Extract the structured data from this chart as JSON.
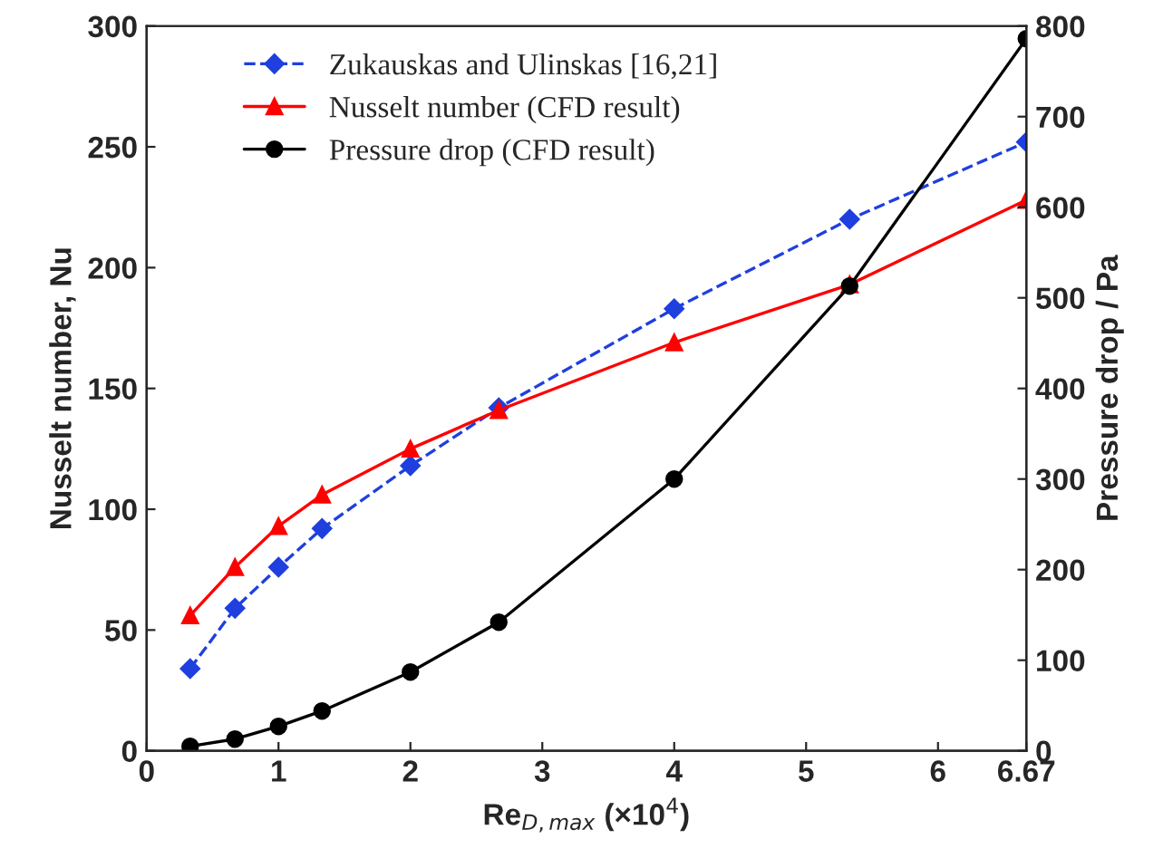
{
  "chart_data": {
    "type": "line",
    "xlabel": "Re$_{D,max}$ (×10$^{4}$)",
    "ylabel": "Nusselt number, Nu",
    "y2label": "Pressure drop / Pa",
    "x": [
      0.33,
      0.67,
      1,
      1.33,
      2,
      2.67,
      4,
      5.33,
      6.67
    ],
    "series": [
      {
        "name": "Zukauskas and Ulinskas [16,21]",
        "color": "#1f3fdf",
        "marker": "diamond",
        "line_style": "dashed",
        "values": [
          34,
          59,
          76,
          92,
          118,
          142,
          183,
          220,
          252
        ]
      },
      {
        "name": "Nusselt number (CFD result)",
        "color": "#ff0000",
        "marker": "triangle",
        "line_style": "solid",
        "values": [
          56,
          76,
          93,
          106,
          125,
          141,
          169,
          193,
          228
        ]
      },
      {
        "name": "Pressure drop (CFD result)",
        "color": "#000000",
        "marker": "circle",
        "line_style": "solid",
        "axis": "y2",
        "values": [
          5,
          13,
          27,
          44,
          87,
          142,
          300,
          513,
          786
        ]
      }
    ],
    "xlim": [
      0,
      6.67
    ],
    "xticks": [
      0,
      1,
      2,
      3,
      4,
      5,
      6,
      6.67
    ],
    "ylim": [
      0,
      300
    ],
    "yticks": [
      0,
      50,
      100,
      150,
      200,
      250,
      300
    ],
    "y2lim": [
      0,
      800
    ],
    "y2ticks": [
      0,
      100,
      200,
      300,
      400,
      500,
      600,
      700,
      800
    ],
    "legend": "top left",
    "grid": false
  }
}
